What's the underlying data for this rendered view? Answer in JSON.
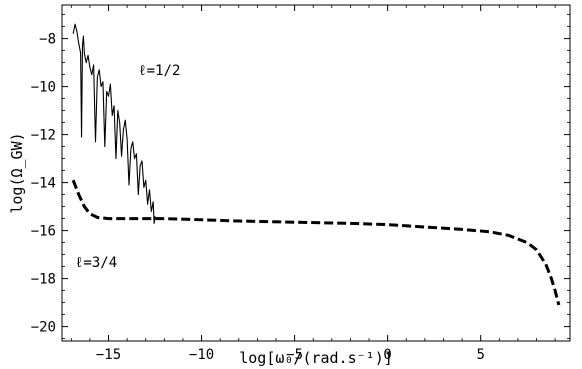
{
  "chart_data": {
    "type": "line",
    "title": "",
    "xlabel": "log[ω₀/(rad.s⁻¹)]",
    "ylabel": "log(Ω_GW)",
    "xlim": [
      -17.5,
      9.8
    ],
    "ylim": [
      -20.6,
      -6.6
    ],
    "x_ticks": [
      -15,
      -10,
      -5,
      0,
      5
    ],
    "y_ticks": [
      -20,
      -18,
      -16,
      -14,
      -12,
      -10,
      -8
    ],
    "grid": false,
    "legend": "none",
    "annotations": [
      {
        "text": "ℓ=1/2",
        "x": -13.4,
        "y": -9.3
      },
      {
        "text": "ℓ=3/4",
        "x": -16.8,
        "y": -17.3
      }
    ],
    "series": [
      {
        "style": "solid",
        "color": "#000000",
        "x": [
          -16.9,
          -16.8,
          -16.7,
          -16.6,
          -16.5,
          -16.45,
          -16.4,
          -16.35,
          -16.3,
          -16.2,
          -16.1,
          -16.0,
          -15.9,
          -15.8,
          -15.7,
          -15.6,
          -15.5,
          -15.4,
          -15.3,
          -15.2,
          -15.1,
          -15.0,
          -14.9,
          -14.8,
          -14.7,
          -14.6,
          -14.5,
          -14.4,
          -14.3,
          -14.2,
          -14.1,
          -14.0,
          -13.9,
          -13.8,
          -13.7,
          -13.6,
          -13.5,
          -13.4,
          -13.3,
          -13.2,
          -13.1,
          -13.0,
          -12.9,
          -12.8,
          -12.7,
          -12.6,
          -12.55,
          -12.5
        ],
        "y": [
          -7.8,
          -7.4,
          -7.7,
          -8.2,
          -8.6,
          -12.1,
          -8.3,
          -7.9,
          -8.6,
          -9.0,
          -8.7,
          -9.2,
          -9.5,
          -9.1,
          -12.3,
          -9.6,
          -9.3,
          -10.0,
          -9.8,
          -12.5,
          -10.2,
          -10.4,
          -9.9,
          -11.2,
          -10.8,
          -13.0,
          -11.0,
          -11.5,
          -12.9,
          -11.8,
          -11.4,
          -12.2,
          -14.1,
          -12.6,
          -12.3,
          -13.0,
          -12.8,
          -14.5,
          -13.3,
          -13.1,
          -14.2,
          -13.9,
          -14.9,
          -14.3,
          -15.2,
          -14.8,
          -15.7,
          -15.4
        ]
      },
      {
        "style": "dashed",
        "color": "#000000",
        "x": [
          -16.9,
          -16.6,
          -16.3,
          -16.0,
          -15.6,
          -15.0,
          -14.0,
          -12.0,
          -10.0,
          -8.0,
          -5.0,
          -2.0,
          0.0,
          2.0,
          4.0,
          5.5,
          6.5,
          7.5,
          8.0,
          8.5,
          8.8,
          9.0,
          9.2
        ],
        "y": [
          -13.9,
          -14.5,
          -15.0,
          -15.3,
          -15.45,
          -15.5,
          -15.5,
          -15.5,
          -15.55,
          -15.6,
          -15.65,
          -15.7,
          -15.75,
          -15.85,
          -15.95,
          -16.05,
          -16.2,
          -16.5,
          -16.8,
          -17.4,
          -18.0,
          -18.5,
          -19.1
        ]
      }
    ]
  }
}
